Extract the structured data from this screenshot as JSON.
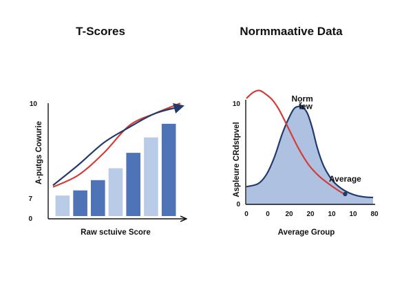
{
  "colors": {
    "bar_light": "#b9cbe6",
    "bar_dark": "#4e73b6",
    "curve_blue": "#1f3a6b",
    "curve_red": "#d43a36",
    "area_fill": "#aec1e1",
    "axis": "#111111"
  },
  "chart_data": [
    {
      "type": "bar",
      "title": "T-Scores",
      "xlabel": "Raw sctuive Score",
      "ylabel": "A-putgs Cowurie",
      "y_ticks": [
        "10",
        "7",
        "0"
      ],
      "values": [
        1.2,
        1.5,
        2.1,
        2.8,
        3.7,
        4.6,
        5.4
      ],
      "bar_shades": [
        "light",
        "dark",
        "dark",
        "light",
        "dark",
        "light",
        "dark"
      ],
      "ylim": [
        0,
        6.2
      ],
      "series": [
        {
          "type": "line",
          "values": [
            1.7,
            2.4,
            3.7,
            5.3,
            6.0,
            6.6
          ]
        },
        {
          "type": "line",
          "values": [
            1.8,
            3.0,
            4.3,
            5.2,
            6.0,
            6.4
          ]
        }
      ],
      "grid": false,
      "legend": "none"
    },
    {
      "type": "area",
      "title": "Normmaative Data",
      "xlabel": "Average Group",
      "ylabel": "Aspleure CRdstpvel",
      "x_ticks": [
        "0",
        "0",
        "20",
        "20",
        "10",
        "10",
        "80"
      ],
      "y_ticks": [
        "10",
        "0"
      ],
      "annotations": [
        {
          "text": "Norm",
          "x": 22,
          "y": 10.5
        },
        {
          "text": "f̈ew",
          "x": 24,
          "y": 9.7
        },
        {
          "text": "Average",
          "x": 48,
          "y": 2.3
        }
      ],
      "series": [
        {
          "type": "area",
          "x": [
            -12,
            -5,
            0,
            5,
            10,
            15,
            18,
            22,
            25,
            28,
            31,
            35,
            40,
            45,
            50,
            55,
            60,
            65
          ],
          "y": [
            1.8,
            2.1,
            3.0,
            4.8,
            7.3,
            9.2,
            9.9,
            9.9,
            9.3,
            7.8,
            5.8,
            3.9,
            2.5,
            1.7,
            1.2,
            0.9,
            0.75,
            0.7
          ]
        },
        {
          "type": "line",
          "x": [
            -12,
            -8,
            -4,
            0,
            4,
            8,
            14,
            20,
            26,
            32,
            38,
            44,
            48
          ],
          "y": [
            10.8,
            11.4,
            11.6,
            11.2,
            10.6,
            9.6,
            7.6,
            5.6,
            4.0,
            2.9,
            2.1,
            1.4,
            1.0
          ]
        }
      ],
      "points": [
        {
          "x": 22,
          "y": 9.9
        },
        {
          "x": 48,
          "y": 1.05
        }
      ],
      "xlim": [
        -12,
        65
      ],
      "ylim": [
        0,
        11.5
      ],
      "grid": false,
      "legend": "none"
    }
  ]
}
